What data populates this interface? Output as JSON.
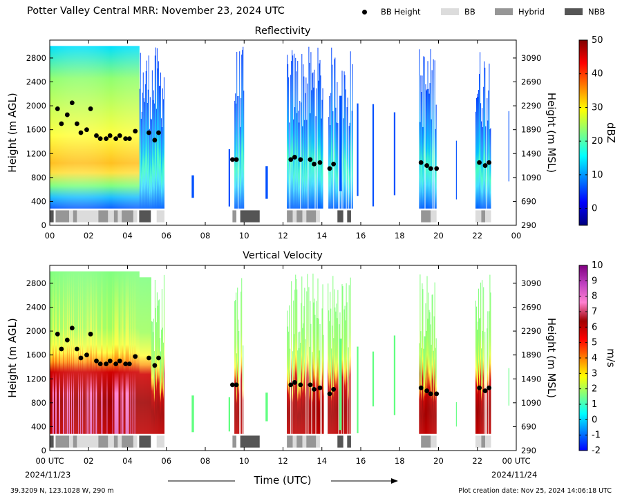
{
  "header": {
    "title": "Potter Valley Central MRR:  November 23, 2024 UTC"
  },
  "legend": [
    {
      "label": "BB Height",
      "kind": "dot",
      "color": "#000000"
    },
    {
      "label": "BB",
      "kind": "swatch",
      "color": "#dcdcdc"
    },
    {
      "label": "Hybrid",
      "kind": "swatch",
      "color": "#969696"
    },
    {
      "label": "NBB",
      "kind": "swatch",
      "color": "#555555"
    }
  ],
  "x_axis": {
    "label": "Time (UTC)",
    "ticks": [
      "00",
      "02",
      "04",
      "06",
      "08",
      "10",
      "12",
      "14",
      "16",
      "18",
      "20",
      "22",
      "00"
    ],
    "bottom_ticks": [
      "00 UTC",
      "02",
      "04",
      "06",
      "08",
      "10",
      "12",
      "14",
      "16",
      "18",
      "20",
      "22",
      "00 UTC"
    ],
    "start_date": "2024/11/23",
    "end_date": "2024/11/24"
  },
  "footer": {
    "location": "39.3209 N, 123.1028 W, 290 m",
    "creation": "Plot creation date: Nov 25, 2024 14:06:18 UTC"
  },
  "chart_data": [
    {
      "type": "heatmap",
      "title": "Reflectivity",
      "ylabel": "Height (m AGL)",
      "ylabel_right": "Height (m MSL)",
      "xlim": [
        0,
        24
      ],
      "ylim": [
        0,
        3100
      ],
      "yticks": [
        "0",
        "400",
        "800",
        "1200",
        "1600",
        "2000",
        "2400",
        "2800"
      ],
      "yticks_right": [
        "290",
        "690",
        "1090",
        "1490",
        "1890",
        "2290",
        "2690",
        "3090"
      ],
      "colorbar": {
        "label": "dBZ",
        "range": [
          -5,
          50
        ],
        "ticks": [
          "0",
          "10",
          "20",
          "30",
          "40",
          "50"
        ],
        "colors": [
          "#00007f",
          "#0000ff",
          "#0080ff",
          "#00ffff",
          "#80ff80",
          "#ffff00",
          "#ff8000",
          "#ff0000",
          "#7f0000"
        ]
      },
      "precip_periods_hours": [
        [
          0,
          5.9
        ],
        [
          9.5,
          10.0
        ],
        [
          12.2,
          14.1
        ],
        [
          14.3,
          15.6
        ],
        [
          19.0,
          19.9
        ],
        [
          21.9,
          22.7
        ]
      ],
      "bb_height_m": [
        [
          0.4,
          1950
        ],
        [
          0.6,
          1700
        ],
        [
          0.9,
          1850
        ],
        [
          1.15,
          2050
        ],
        [
          1.4,
          1700
        ],
        [
          1.6,
          1550
        ],
        [
          1.9,
          1600
        ],
        [
          2.1,
          1950
        ],
        [
          2.4,
          1500
        ],
        [
          2.6,
          1450
        ],
        [
          2.9,
          1450
        ],
        [
          3.1,
          1500
        ],
        [
          3.4,
          1450
        ],
        [
          3.6,
          1500
        ],
        [
          3.9,
          1450
        ],
        [
          4.1,
          1450
        ],
        [
          4.4,
          1575
        ],
        [
          5.1,
          1550
        ],
        [
          5.4,
          1425
        ],
        [
          5.6,
          1550
        ],
        [
          9.4,
          1100
        ],
        [
          9.6,
          1100
        ],
        [
          12.4,
          1100
        ],
        [
          12.6,
          1140
        ],
        [
          12.9,
          1100
        ],
        [
          13.4,
          1100
        ],
        [
          13.6,
          1025
        ],
        [
          13.9,
          1050
        ],
        [
          14.4,
          950
        ],
        [
          14.6,
          1025
        ],
        [
          19.1,
          1050
        ],
        [
          19.4,
          1000
        ],
        [
          19.6,
          950
        ],
        [
          19.9,
          950
        ],
        [
          22.1,
          1050
        ],
        [
          22.4,
          1000
        ],
        [
          22.6,
          1050
        ]
      ],
      "melting_layer_type": [
        [
          "NBB",
          0.0,
          0.2
        ],
        [
          "Hybrid",
          0.3,
          1.0
        ],
        [
          "BB",
          1.0,
          1.2
        ],
        [
          "Hybrid",
          1.2,
          1.4
        ],
        [
          "BB",
          1.4,
          2.5
        ],
        [
          "Hybrid",
          2.5,
          3.0
        ],
        [
          "BB",
          3.0,
          3.3
        ],
        [
          "Hybrid",
          3.3,
          3.5
        ],
        [
          "BB",
          3.5,
          3.7
        ],
        [
          "Hybrid",
          3.7,
          4.3
        ],
        [
          "BB",
          4.3,
          4.5
        ],
        [
          "NBB",
          4.6,
          5.2
        ],
        [
          "BB",
          5.5,
          5.9
        ],
        [
          "Hybrid",
          9.4,
          9.6
        ],
        [
          "NBB",
          9.8,
          10.8
        ],
        [
          "Hybrid",
          12.2,
          12.5
        ],
        [
          "BB",
          12.5,
          12.7
        ],
        [
          "Hybrid",
          12.7,
          13.0
        ],
        [
          "BB",
          13.0,
          13.2
        ],
        [
          "Hybrid",
          13.2,
          13.7
        ],
        [
          "BB",
          13.7,
          13.9
        ],
        [
          "NBB",
          14.8,
          15.1
        ],
        [
          "NBB",
          15.3,
          15.5
        ],
        [
          "Hybrid",
          19.1,
          19.6
        ],
        [
          "BB",
          19.6,
          19.9
        ],
        [
          "BB",
          21.9,
          22.2
        ],
        [
          "Hybrid",
          22.2,
          22.4
        ],
        [
          "BB",
          22.4,
          22.7
        ]
      ]
    },
    {
      "type": "heatmap",
      "title": "Vertical Velocity",
      "ylabel": "Height (m AGL)",
      "ylabel_right": "Height (m MSL)",
      "xlim": [
        0,
        24
      ],
      "ylim": [
        0,
        3100
      ],
      "yticks": [
        "0",
        "400",
        "800",
        "1200",
        "1600",
        "2000",
        "2400",
        "2800"
      ],
      "yticks_right": [
        "290",
        "690",
        "1090",
        "1490",
        "1890",
        "2290",
        "2690",
        "3090"
      ],
      "colorbar": {
        "label": "m/s",
        "range": [
          -2,
          10
        ],
        "ticks": [
          "-2",
          "-1",
          "0",
          "1",
          "2",
          "3",
          "4",
          "5",
          "6",
          "7",
          "8",
          "9",
          "10"
        ],
        "colors": [
          "#0000ff",
          "#0080ff",
          "#00ffff",
          "#80ff80",
          "#ffff00",
          "#ff8000",
          "#ff0000",
          "#a00000",
          "#ff80d0",
          "#c040c0",
          "#800080"
        ]
      },
      "precip_periods_hours": [
        [
          0,
          5.9
        ],
        [
          9.5,
          10.0
        ],
        [
          12.2,
          14.1
        ],
        [
          14.3,
          15.6
        ],
        [
          19.0,
          19.9
        ],
        [
          21.9,
          22.7
        ]
      ]
    }
  ]
}
